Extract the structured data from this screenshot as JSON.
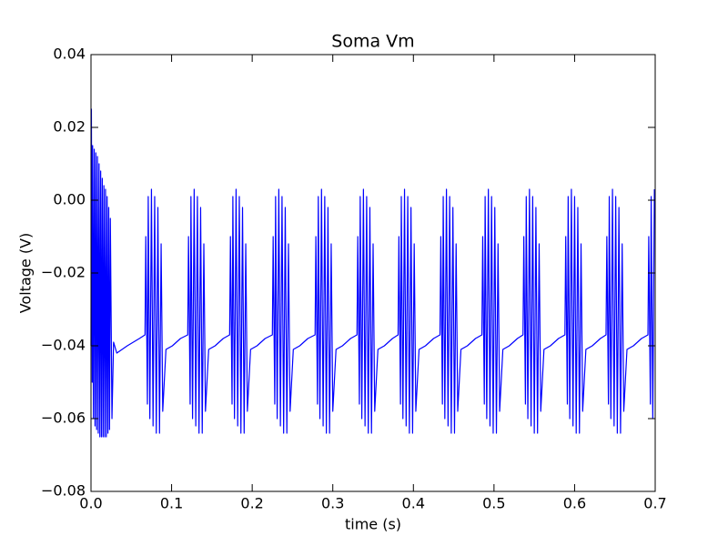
{
  "chart_data": {
    "type": "line",
    "title": "Soma Vm",
    "xlabel": "time (s)",
    "ylabel": "Voltage (V)",
    "series": [
      {
        "color": "#0000ff",
        "x": [
          0.0,
          0.0005,
          0.0015,
          0.002,
          0.003,
          0.004,
          0.005,
          0.006,
          0.007,
          0.008,
          0.009,
          0.01,
          0.011,
          0.012,
          0.013,
          0.014,
          0.015,
          0.016,
          0.017,
          0.018,
          0.019,
          0.02,
          0.021,
          0.022,
          0.023,
          0.024,
          0.026,
          0.028,
          0.032,
          0.045,
          0.06,
          0.067,
          0.068,
          0.07,
          0.071,
          0.073,
          0.075,
          0.077,
          0.079,
          0.081,
          0.083,
          0.085,
          0.087,
          0.089,
          0.093,
          0.101,
          0.111,
          0.12,
          0.121,
          0.123,
          0.124,
          0.126,
          0.128,
          0.13,
          0.132,
          0.134,
          0.136,
          0.138,
          0.14,
          0.142,
          0.146,
          0.154,
          0.164,
          0.172,
          0.173,
          0.175,
          0.176,
          0.178,
          0.18,
          0.182,
          0.184,
          0.186,
          0.188,
          0.19,
          0.192,
          0.194,
          0.198,
          0.206,
          0.216,
          0.225,
          0.226,
          0.228,
          0.229,
          0.231,
          0.233,
          0.235,
          0.237,
          0.239,
          0.241,
          0.243,
          0.245,
          0.247,
          0.251,
          0.259,
          0.269,
          0.278,
          0.279,
          0.281,
          0.282,
          0.284,
          0.286,
          0.288,
          0.29,
          0.292,
          0.294,
          0.296,
          0.298,
          0.3,
          0.304,
          0.312,
          0.322,
          0.33,
          0.331,
          0.333,
          0.334,
          0.336,
          0.338,
          0.34,
          0.342,
          0.344,
          0.346,
          0.348,
          0.35,
          0.352,
          0.356,
          0.364,
          0.374,
          0.381,
          0.382,
          0.384,
          0.385,
          0.387,
          0.389,
          0.391,
          0.393,
          0.395,
          0.397,
          0.399,
          0.401,
          0.403,
          0.407,
          0.415,
          0.425,
          0.433,
          0.434,
          0.436,
          0.437,
          0.439,
          0.441,
          0.443,
          0.445,
          0.447,
          0.449,
          0.451,
          0.453,
          0.455,
          0.459,
          0.467,
          0.477,
          0.485,
          0.486,
          0.488,
          0.489,
          0.491,
          0.493,
          0.495,
          0.497,
          0.499,
          0.501,
          0.503,
          0.505,
          0.507,
          0.511,
          0.519,
          0.529,
          0.536,
          0.537,
          0.539,
          0.54,
          0.542,
          0.544,
          0.546,
          0.548,
          0.55,
          0.552,
          0.554,
          0.556,
          0.558,
          0.562,
          0.57,
          0.58,
          0.588,
          0.589,
          0.591,
          0.592,
          0.594,
          0.596,
          0.598,
          0.6,
          0.602,
          0.604,
          0.606,
          0.608,
          0.61,
          0.614,
          0.622,
          0.632,
          0.639,
          0.64,
          0.642,
          0.643,
          0.645,
          0.647,
          0.649,
          0.651,
          0.653,
          0.655,
          0.657,
          0.659,
          0.661,
          0.665,
          0.673,
          0.683,
          0.691,
          0.692,
          0.694,
          0.695,
          0.697,
          0.699
        ],
        "values": [
          -0.04,
          0.025,
          -0.05,
          0.015,
          -0.06,
          0.014,
          -0.062,
          0.013,
          -0.063,
          0.012,
          -0.064,
          0.01,
          -0.065,
          0.008,
          -0.065,
          0.006,
          -0.065,
          0.004,
          -0.065,
          0.003,
          -0.065,
          0.001,
          -0.064,
          -0.002,
          -0.063,
          -0.005,
          -0.06,
          -0.039,
          -0.042,
          -0.04,
          -0.038,
          -0.037,
          -0.01,
          -0.056,
          0.001,
          -0.06,
          0.003,
          -0.062,
          0.001,
          -0.064,
          -0.002,
          -0.064,
          -0.012,
          -0.058,
          -0.041,
          -0.04,
          -0.038,
          -0.037,
          -0.01,
          -0.056,
          0.001,
          -0.06,
          0.003,
          -0.062,
          0.001,
          -0.064,
          -0.002,
          -0.064,
          -0.012,
          -0.058,
          -0.041,
          -0.04,
          -0.038,
          -0.037,
          -0.01,
          -0.056,
          0.001,
          -0.06,
          0.003,
          -0.062,
          0.001,
          -0.064,
          -0.002,
          -0.064,
          -0.012,
          -0.058,
          -0.041,
          -0.04,
          -0.038,
          -0.037,
          -0.01,
          -0.056,
          0.001,
          -0.06,
          0.003,
          -0.062,
          0.001,
          -0.064,
          -0.002,
          -0.064,
          -0.012,
          -0.058,
          -0.041,
          -0.04,
          -0.038,
          -0.037,
          -0.01,
          -0.056,
          0.001,
          -0.06,
          0.003,
          -0.062,
          0.001,
          -0.064,
          -0.002,
          -0.064,
          -0.012,
          -0.058,
          -0.041,
          -0.04,
          -0.038,
          -0.037,
          -0.01,
          -0.056,
          0.001,
          -0.06,
          0.003,
          -0.062,
          0.001,
          -0.064,
          -0.002,
          -0.064,
          -0.012,
          -0.058,
          -0.041,
          -0.04,
          -0.038,
          -0.037,
          -0.01,
          -0.056,
          0.001,
          -0.06,
          0.003,
          -0.062,
          0.001,
          -0.064,
          -0.002,
          -0.064,
          -0.012,
          -0.058,
          -0.041,
          -0.04,
          -0.038,
          -0.037,
          -0.01,
          -0.056,
          0.001,
          -0.06,
          0.003,
          -0.062,
          0.001,
          -0.064,
          -0.002,
          -0.064,
          -0.012,
          -0.058,
          -0.041,
          -0.04,
          -0.038,
          -0.037,
          -0.01,
          -0.056,
          0.001,
          -0.06,
          0.003,
          -0.062,
          0.001,
          -0.064,
          -0.002,
          -0.064,
          -0.012,
          -0.058,
          -0.041,
          -0.04,
          -0.038,
          -0.037,
          -0.01,
          -0.056,
          0.001,
          -0.06,
          0.003,
          -0.062,
          0.001,
          -0.064,
          -0.002,
          -0.064,
          -0.012,
          -0.058,
          -0.041,
          -0.04,
          -0.038,
          -0.037,
          -0.01,
          -0.056,
          0.001,
          -0.06,
          0.003,
          -0.062,
          0.001,
          -0.064,
          -0.002,
          -0.064,
          -0.012,
          -0.058,
          -0.041,
          -0.04,
          -0.038,
          -0.037,
          -0.01,
          -0.056,
          0.001,
          -0.06,
          0.003,
          -0.062,
          0.001,
          -0.064,
          -0.002,
          -0.064,
          -0.012,
          -0.058,
          -0.041,
          -0.04,
          -0.038,
          -0.037,
          -0.01,
          -0.056,
          0.001,
          -0.06,
          0.003
        ]
      }
    ],
    "xlim": [
      0,
      0.7
    ],
    "xticks": [
      {
        "value": 0,
        "label": "0.0"
      },
      {
        "value": 0.1,
        "label": "0.1"
      },
      {
        "value": 0.2,
        "label": "0.2"
      },
      {
        "value": 0.3,
        "label": "0.3"
      },
      {
        "value": 0.4,
        "label": "0.4"
      },
      {
        "value": 0.5,
        "label": "0.5"
      },
      {
        "value": 0.6,
        "label": "0.6"
      },
      {
        "value": 0.7,
        "label": "0.7"
      }
    ],
    "ylim": [
      -0.08,
      0.04
    ],
    "yticks": [
      {
        "value": -0.08,
        "label": "−0.08"
      },
      {
        "value": -0.06,
        "label": "−0.06"
      },
      {
        "value": -0.04,
        "label": "−0.04"
      },
      {
        "value": -0.02,
        "label": "−0.02"
      },
      {
        "value": 0,
        "label": "0.00"
      },
      {
        "value": 0.02,
        "label": "0.02"
      },
      {
        "value": 0.04,
        "label": "0.04"
      }
    ],
    "grid": false
  }
}
